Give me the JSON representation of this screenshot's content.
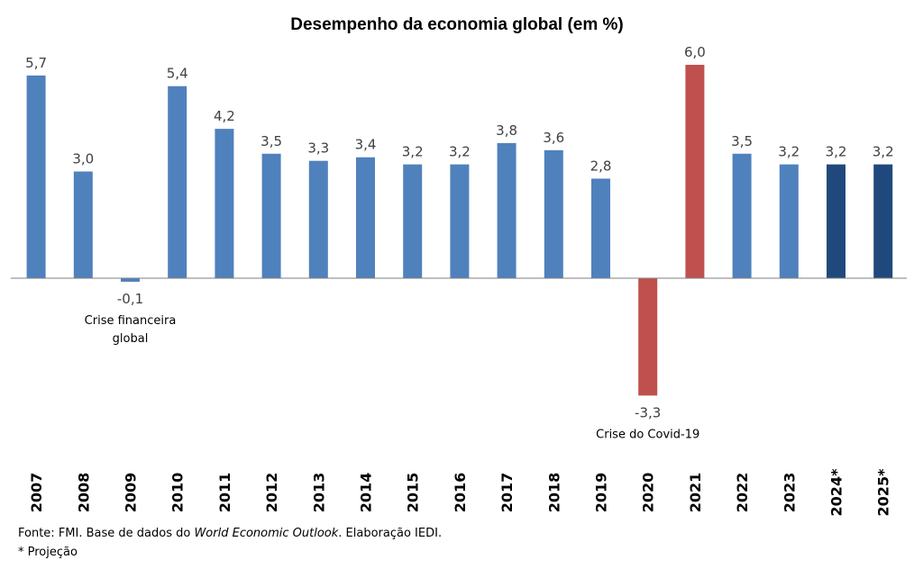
{
  "chart_data": {
    "type": "bar",
    "title": "Desempenho da economia global (em %)",
    "categories": [
      "2007",
      "2008",
      "2009",
      "2010",
      "2011",
      "2012",
      "2013",
      "2014",
      "2015",
      "2016",
      "2017",
      "2018",
      "2019",
      "2020",
      "2021",
      "2022",
      "2023",
      "2024*",
      "2025*"
    ],
    "values": [
      5.7,
      3.0,
      -0.1,
      5.4,
      4.2,
      3.5,
      3.3,
      3.4,
      3.2,
      3.2,
      3.8,
      3.6,
      2.8,
      -3.3,
      6.0,
      3.5,
      3.2,
      3.2,
      3.2
    ],
    "labels": [
      "5,7",
      "3,0",
      "-0,1",
      "5,4",
      "4,2",
      "3,5",
      "3,3",
      "3,4",
      "3,2",
      "3,2",
      "3,8",
      "3,6",
      "2,8",
      "-3,3",
      "6,0",
      "3,5",
      "3,2",
      "3,2",
      "3,2"
    ],
    "bar_groups": [
      "hist",
      "hist",
      "hist",
      "hist",
      "hist",
      "hist",
      "hist",
      "hist",
      "hist",
      "hist",
      "hist",
      "hist",
      "hist",
      "crisis",
      "crisis",
      "hist",
      "hist",
      "proj",
      "proj"
    ],
    "colors": {
      "hist": "#4f81bd",
      "crisis": "#c0504d",
      "proj": "#1f497d",
      "baseline": "#7f7f7f"
    },
    "xlabel": "",
    "ylabel": "",
    "ylim": [
      -3.5,
      6.2
    ],
    "annotations": [
      {
        "category": "2009",
        "lines": [
          "Crise financeira",
          "global"
        ]
      },
      {
        "category": "2020",
        "lines": [
          "Crise do Covid-19"
        ]
      }
    ]
  },
  "footer": {
    "source_prefix": "Fonte: FMI.  Base de dados do ",
    "source_italic": "World Economic Outlook",
    "source_suffix": ". Elaboração IEDI.",
    "note": "* Projeção"
  }
}
